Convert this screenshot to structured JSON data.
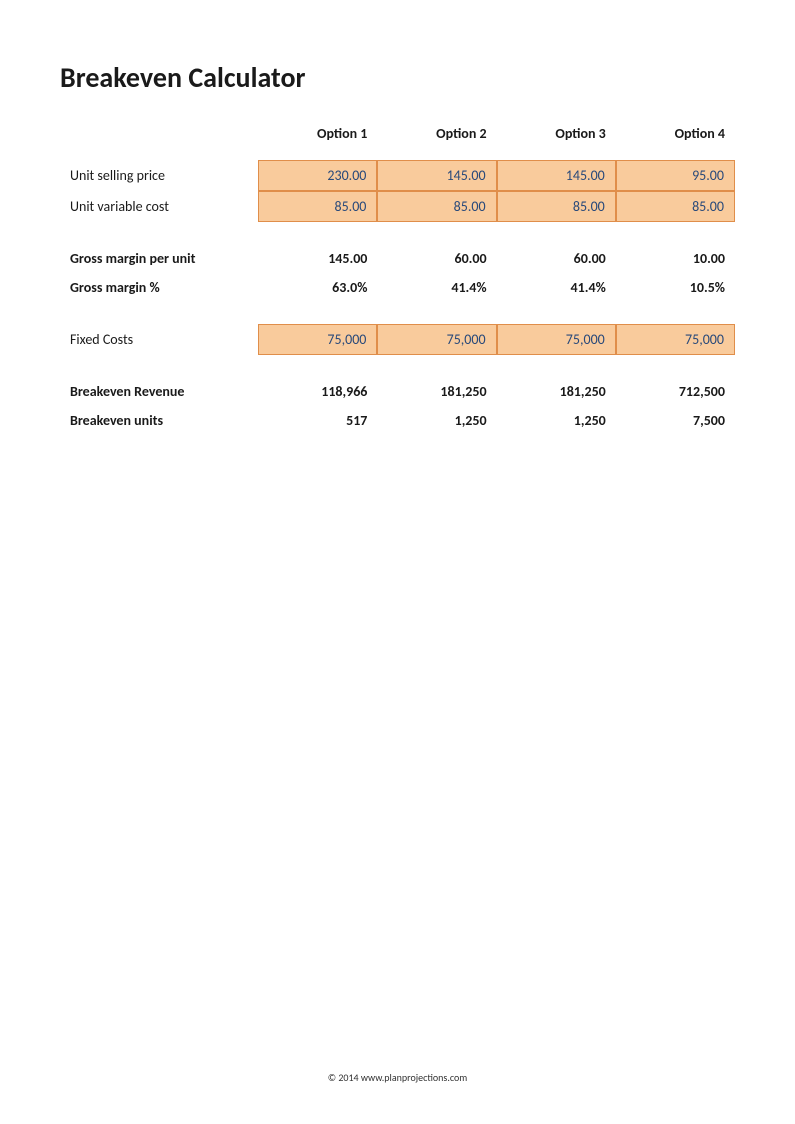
{
  "title": "Breakeven Calculator",
  "columns": [
    "Option 1",
    "Option 2",
    "Option 3",
    "Option 4"
  ],
  "rows": {
    "unit_selling_price": {
      "label": "Unit selling price",
      "values": [
        "230.00",
        "145.00",
        "145.00",
        "95.00"
      ],
      "style": "input"
    },
    "unit_variable_cost": {
      "label": "Unit variable cost",
      "values": [
        "85.00",
        "85.00",
        "85.00",
        "85.00"
      ],
      "style": "input"
    },
    "gross_margin_per_unit": {
      "label": "Gross margin per unit",
      "values": [
        "145.00",
        "60.00",
        "60.00",
        "10.00"
      ],
      "style": "bold"
    },
    "gross_margin_pct": {
      "label": "Gross margin %",
      "values": [
        "63.0%",
        "41.4%",
        "41.4%",
        "10.5%"
      ],
      "style": "bold"
    },
    "fixed_costs": {
      "label": "Fixed Costs",
      "values": [
        "75,000",
        "75,000",
        "75,000",
        "75,000"
      ],
      "style": "input"
    },
    "breakeven_revenue": {
      "label": "Breakeven Revenue",
      "values": [
        "118,966",
        "181,250",
        "181,250",
        "712,500"
      ],
      "style": "bold"
    },
    "breakeven_units": {
      "label": "Breakeven units",
      "values": [
        "517",
        "1,250",
        "1,250",
        "7,500"
      ],
      "style": "bold"
    }
  },
  "styling": {
    "input_bg": "#f9cb9c",
    "input_border": "#e08e4a",
    "input_text": "#2a4a7a",
    "page_bg": "#ffffff",
    "title_fontsize": 28,
    "body_fontsize": 14,
    "footer_fontsize": 10
  },
  "footer": "© 2014 www.planprojections.com"
}
